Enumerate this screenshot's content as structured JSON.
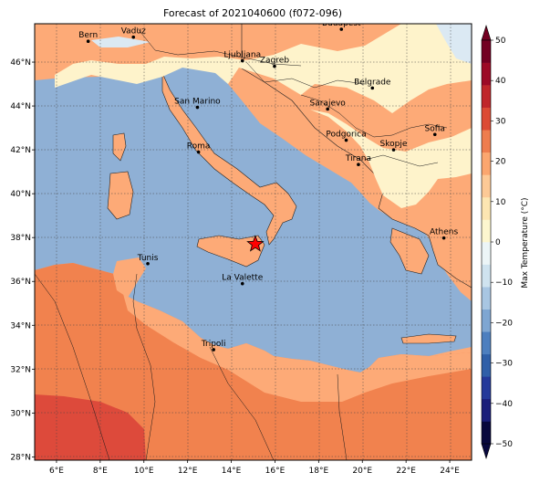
{
  "title": "Forecast of 2021040600 (f072-096)",
  "colorbar_label": "Max Temperature (°C)",
  "lon_ticks": [
    "6°E",
    "8°E",
    "10°E",
    "12°E",
    "14°E",
    "16°E",
    "18°E",
    "20°E",
    "22°E",
    "24°E"
  ],
  "lat_ticks": [
    "28°N",
    "30°N",
    "32°N",
    "34°N",
    "36°N",
    "38°N",
    "40°N",
    "42°N",
    "44°N",
    "46°N"
  ],
  "cities": [
    {
      "name": "Bern",
      "lon": 7.45,
      "lat": 46.95
    },
    {
      "name": "Vaduz",
      "lon": 9.52,
      "lat": 47.14
    },
    {
      "name": "Budapest",
      "lon": 19.04,
      "lat": 47.5
    },
    {
      "name": "Ljubljana",
      "lon": 14.51,
      "lat": 46.06
    },
    {
      "name": "Zagreb",
      "lon": 15.98,
      "lat": 45.81
    },
    {
      "name": "Belgrade",
      "lon": 20.46,
      "lat": 44.82
    },
    {
      "name": "San Marino",
      "lon": 12.45,
      "lat": 43.94
    },
    {
      "name": "Sarajevo",
      "lon": 18.41,
      "lat": 43.86
    },
    {
      "name": "Sofia",
      "lon": 23.32,
      "lat": 42.7
    },
    {
      "name": "Podgorica",
      "lon": 19.26,
      "lat": 42.44
    },
    {
      "name": "Skopje",
      "lon": 21.43,
      "lat": 42.0
    },
    {
      "name": "Roma",
      "lon": 12.5,
      "lat": 41.9
    },
    {
      "name": "Tirana",
      "lon": 19.82,
      "lat": 41.33
    },
    {
      "name": "Athens",
      "lon": 23.73,
      "lat": 37.98
    },
    {
      "name": "Tunis",
      "lon": 10.18,
      "lat": 36.81
    },
    {
      "name": "La Valette",
      "lon": 14.51,
      "lat": 35.9
    },
    {
      "name": "Tripoli",
      "lon": 13.19,
      "lat": 32.89
    }
  ],
  "marker": {
    "type": "star",
    "lon": 15.1,
    "lat": 37.7,
    "color": "#ff0000"
  },
  "colorbar": {
    "ticks": [
      "−50",
      "−40",
      "−30",
      "−20",
      "−10",
      "0",
      "10",
      "20",
      "30",
      "40",
      "50"
    ],
    "colors": [
      "#08083d",
      "#1a1e7a",
      "#24399a",
      "#2f5fa8",
      "#4d7fbf",
      "#7ea6d2",
      "#a8c6e2",
      "#cfe3ef",
      "#ecf5f7",
      "#fdf6cf",
      "#fde6b2",
      "#fdc996",
      "#fba66f",
      "#ee7d4e",
      "#dc4a34",
      "#c0262a",
      "#9c0a26",
      "#730022"
    ]
  },
  "map_colors": {
    "sea": "#8fb0d5",
    "hot": "#f1824e",
    "warmer": "#fdaa77",
    "mild": "#fef3cb",
    "hottest": "#dd4a3b",
    "snow": "#dbe9f3"
  }
}
